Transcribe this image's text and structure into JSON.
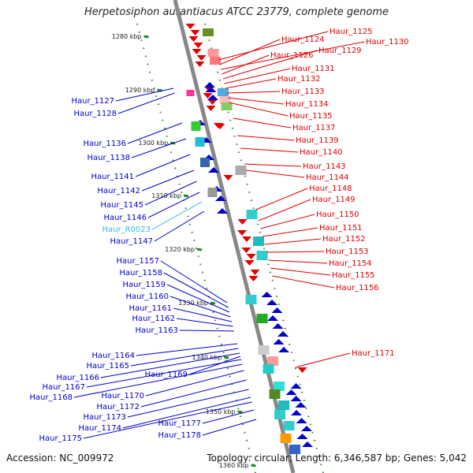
{
  "title": "Herpetosiphon aurantiacus ATCC 23779, complete genome",
  "footer": {
    "accession": "Accession: NC_009972",
    "stats": "Topology: circular; Length: 6,346,587 bp; Genes: 5,042"
  },
  "colors": {
    "reverse_strand": "#e00000",
    "forward_strand": "#0000cc",
    "rna": "#33bbdd",
    "backbone": "#888888",
    "tick": "#228b22"
  },
  "kbp_ticks": [
    "1280 kbp",
    "1290 kbp",
    "1300 kbp",
    "1310 kbp",
    "1320 kbp",
    "1330 kbp",
    "1340 kbp",
    "1350 kbp",
    "1360 kbp"
  ],
  "right_labels": [
    "Haur_1125",
    "Haur_1124",
    "Haur_1130",
    "Haur_1126",
    "Haur_1129",
    "Haur_1131",
    "Haur_1132",
    "Haur_1133",
    "Haur_1134",
    "Haur_1135",
    "Haur_1137",
    "Haur_1139",
    "Haur_1140",
    "Haur_1143",
    "Haur_1144",
    "Haur_1148",
    "Haur_1149",
    "Haur_1150",
    "Haur_1151",
    "Haur_1152",
    "Haur_1153",
    "Haur_1154",
    "Haur_1155",
    "Haur_1156",
    "Haur_1171"
  ],
  "left_labels": [
    "Haur_1127",
    "Haur_1128",
    "Haur_1136",
    "Haur_1138",
    "Haur_1141",
    "Haur_1142",
    "Haur_1145",
    "Haur_1146",
    "Haur_R0023",
    "Haur_1147",
    "Haur_1157",
    "Haur_1158",
    "Haur_1159",
    "Haur_1160",
    "Haur_1161",
    "Haur_1162",
    "Haur_1163",
    "Haur_1164",
    "Haur_1165",
    "Haur_1166",
    "Haur_1169",
    "Haur_1167",
    "Haur_1168",
    "Haur_1170",
    "Haur_1172",
    "Haur_1173",
    "Haur_1174",
    "Haur_1177",
    "Haur_1175",
    "Haur_1178"
  ]
}
